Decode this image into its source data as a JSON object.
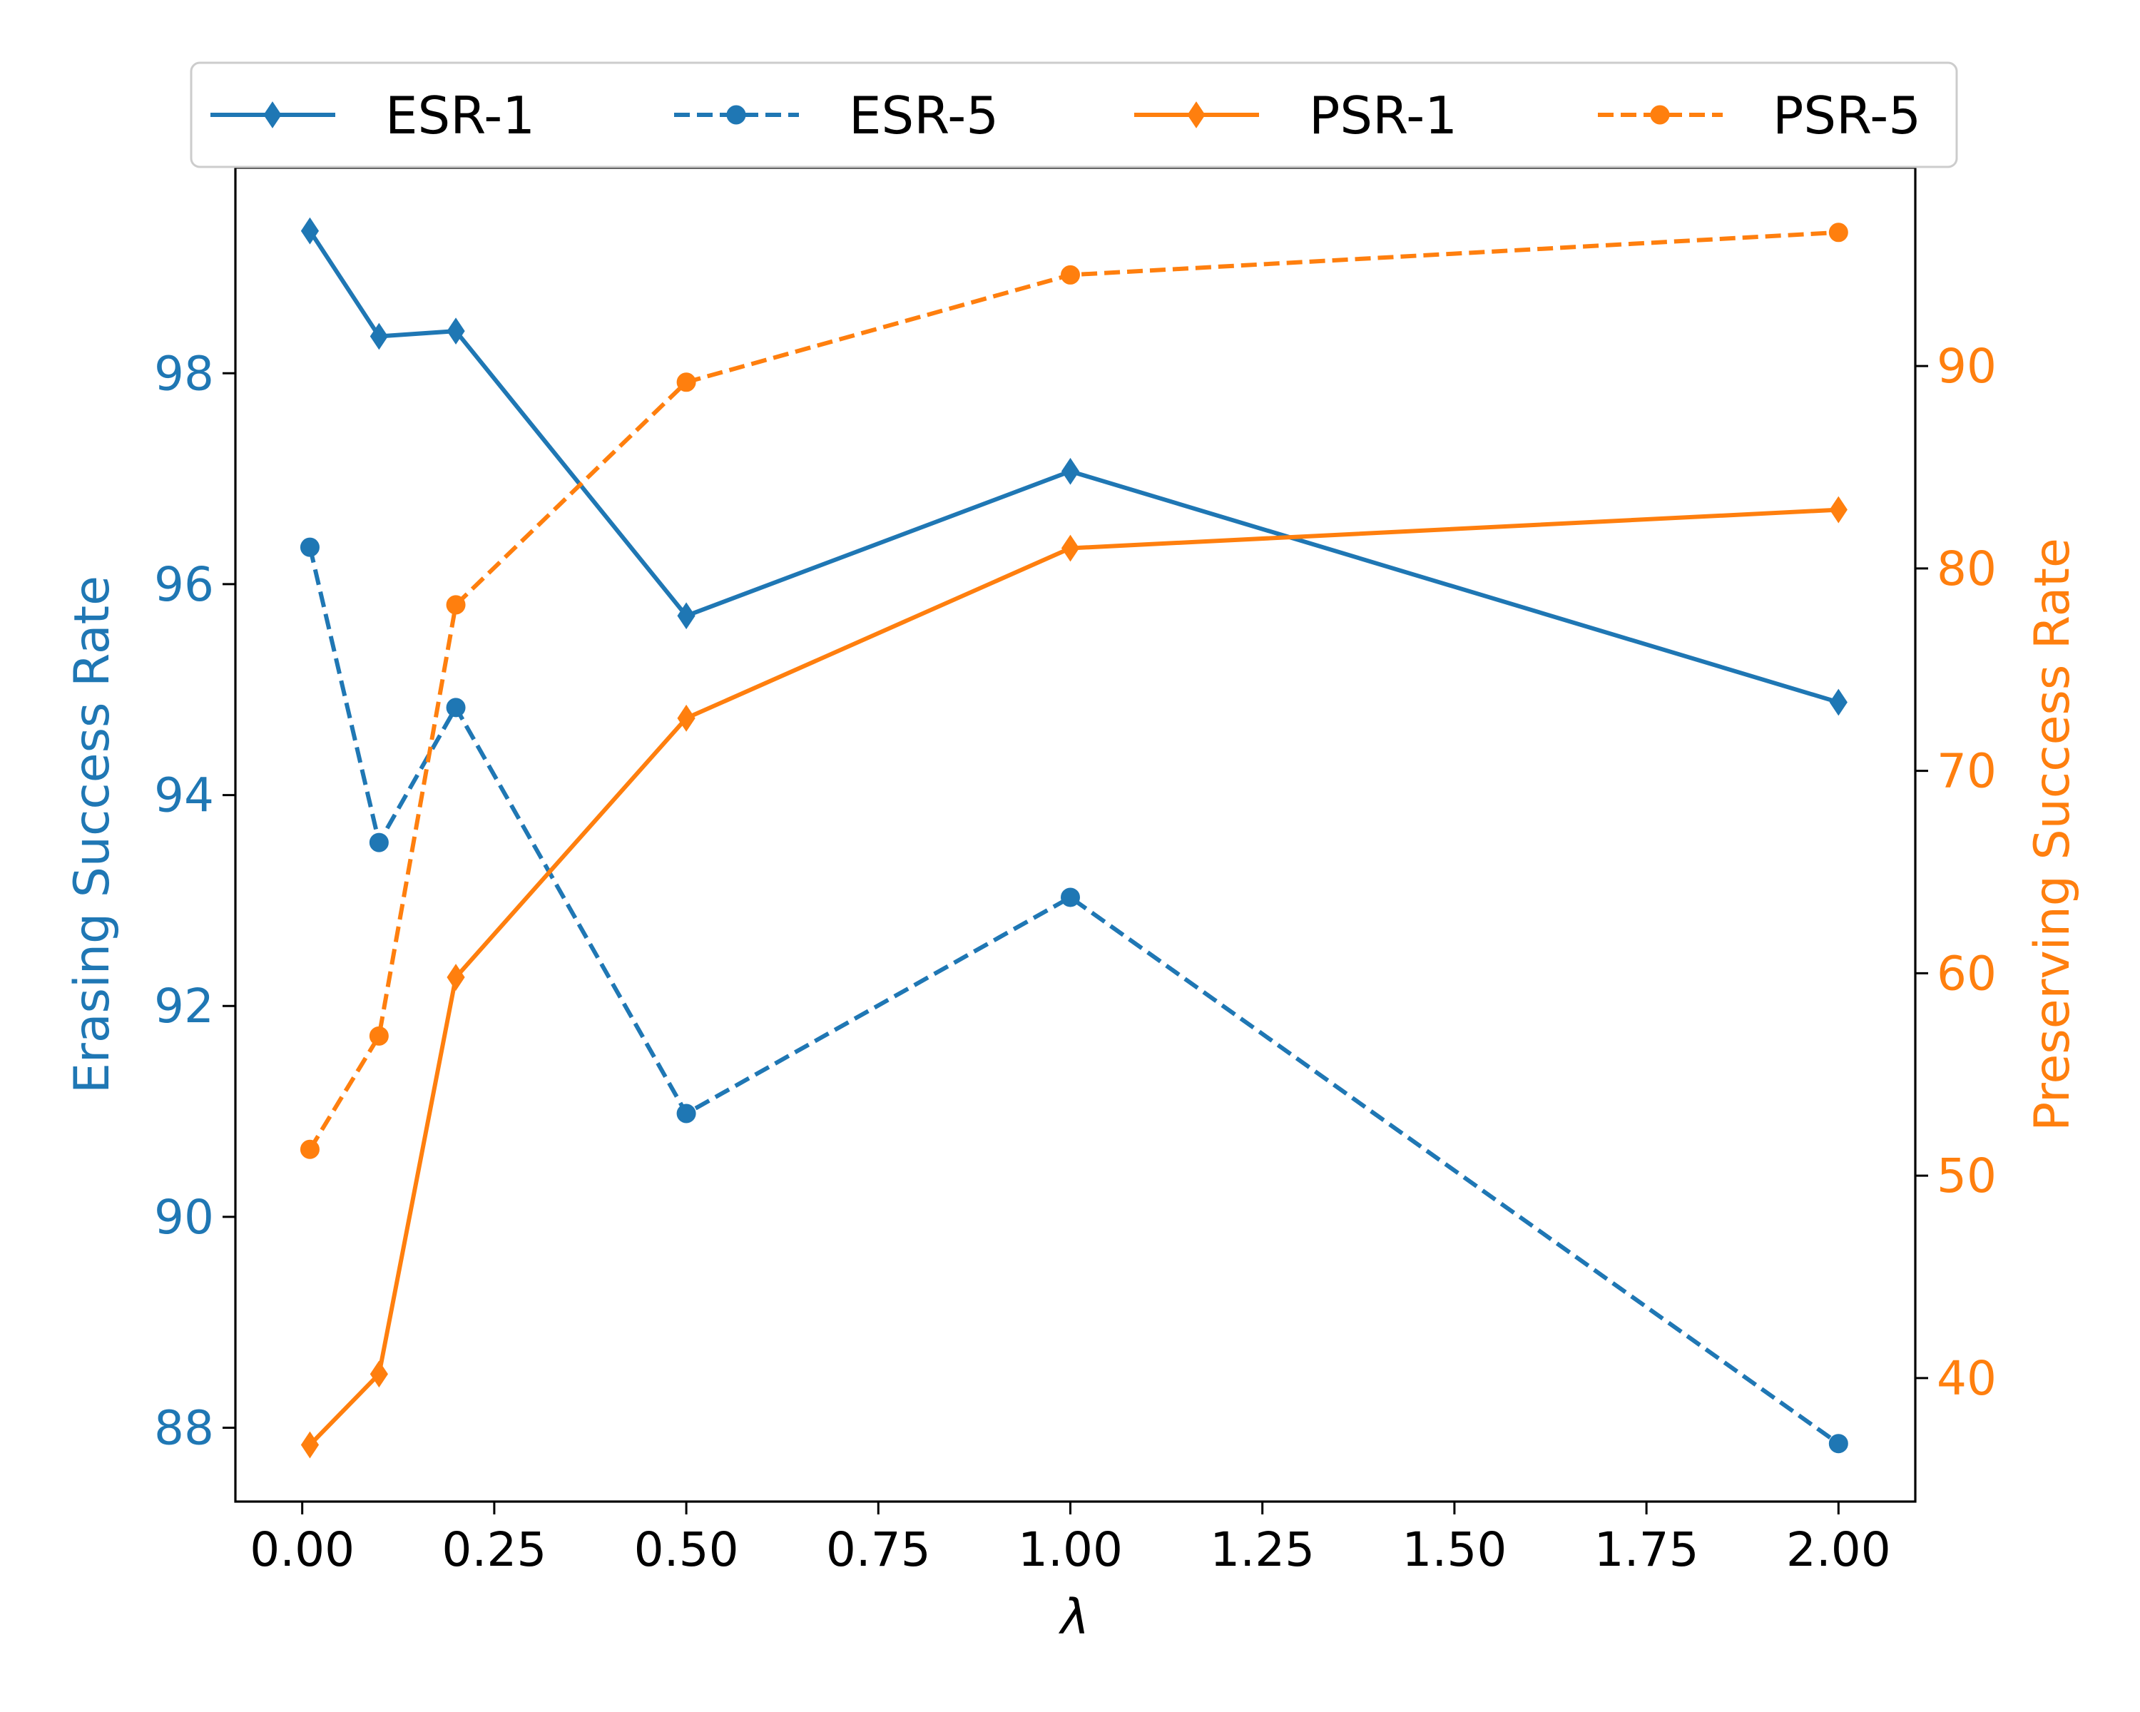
{
  "chart_data": {
    "type": "line",
    "title": "",
    "xlabel": "λ",
    "ylabel_left": "Erasing Success Rate",
    "ylabel_right": "Preserving Success Rate",
    "x": [
      0.01,
      0.1,
      0.2,
      0.5,
      1.0,
      2.0
    ],
    "xlim": [
      -0.087,
      2.1
    ],
    "xticks": [
      0.0,
      0.25,
      0.5,
      0.75,
      1.0,
      1.25,
      1.5,
      1.75,
      2.0
    ],
    "xtick_labels": [
      "0.00",
      "0.25",
      "0.50",
      "0.75",
      "1.00",
      "1.25",
      "1.50",
      "1.75",
      "2.00"
    ],
    "ylim_left": [
      87.3,
      99.95
    ],
    "yticks_left": [
      88,
      90,
      92,
      94,
      96,
      98
    ],
    "ytick_labels_left": [
      "88",
      "90",
      "92",
      "94",
      "96",
      "98"
    ],
    "ylim_right": [
      33.9,
      99.8
    ],
    "yticks_right": [
      40,
      50,
      60,
      70,
      80,
      90
    ],
    "ytick_labels_right": [
      "40",
      "50",
      "60",
      "70",
      "80",
      "90"
    ],
    "grid": false,
    "legend_position": "top, above plot",
    "series": [
      {
        "name": "ESR-1",
        "axis": "left",
        "linestyle": "solid",
        "marker": "diamond",
        "color": "#1f77b4",
        "values": [
          99.35,
          98.35,
          98.4,
          95.7,
          97.07,
          94.88
        ]
      },
      {
        "name": "ESR-5",
        "axis": "left",
        "linestyle": "dashed",
        "marker": "circle",
        "color": "#1f77b4",
        "values": [
          96.35,
          93.55,
          94.83,
          90.98,
          93.03,
          87.85
        ]
      },
      {
        "name": "PSR-1",
        "axis": "right",
        "linestyle": "solid",
        "marker": "diamond",
        "color": "#ff7f0e",
        "values": [
          36.7,
          40.2,
          59.8,
          72.6,
          81.0,
          82.9
        ]
      },
      {
        "name": "PSR-5",
        "axis": "right",
        "linestyle": "dashed",
        "marker": "circle",
        "color": "#ff7f0e",
        "values": [
          51.3,
          56.9,
          78.2,
          89.2,
          94.5,
          96.6
        ]
      }
    ]
  }
}
